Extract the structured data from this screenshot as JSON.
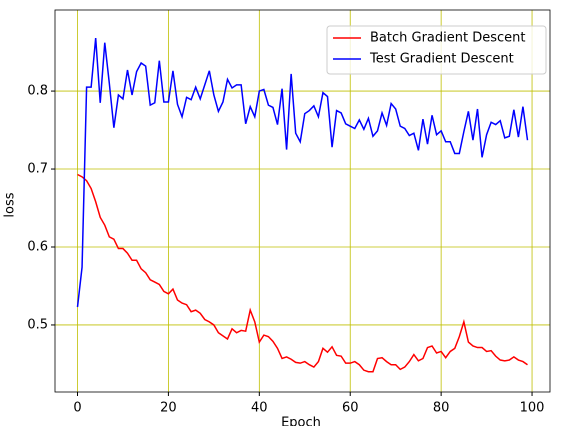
{
  "chart_data": {
    "type": "line",
    "xlabel": "Epoch",
    "ylabel": "loss",
    "x": [
      0,
      1,
      2,
      3,
      4,
      5,
      6,
      7,
      8,
      9,
      10,
      11,
      12,
      13,
      14,
      15,
      16,
      17,
      18,
      19,
      20,
      21,
      22,
      23,
      24,
      25,
      26,
      27,
      28,
      29,
      30,
      31,
      32,
      33,
      34,
      35,
      36,
      37,
      38,
      39,
      40,
      41,
      42,
      43,
      44,
      45,
      46,
      47,
      48,
      49,
      50,
      51,
      52,
      53,
      54,
      55,
      56,
      57,
      58,
      59,
      60,
      61,
      62,
      63,
      64,
      65,
      66,
      67,
      68,
      69,
      70,
      71,
      72,
      73,
      74,
      75,
      76,
      77,
      78,
      79,
      80,
      81,
      82,
      83,
      84,
      85,
      86,
      87,
      88,
      89,
      90,
      91,
      92,
      93,
      94,
      95,
      96,
      97,
      98,
      99
    ],
    "series": [
      {
        "name": "Batch Gradient Descent",
        "color": "#ff0000",
        "values": [
          0.693,
          0.69,
          0.685,
          0.675,
          0.658,
          0.638,
          0.628,
          0.613,
          0.61,
          0.598,
          0.598,
          0.592,
          0.583,
          0.583,
          0.572,
          0.567,
          0.558,
          0.555,
          0.552,
          0.543,
          0.54,
          0.546,
          0.532,
          0.528,
          0.526,
          0.517,
          0.519,
          0.515,
          0.507,
          0.504,
          0.5,
          0.49,
          0.486,
          0.482,
          0.495,
          0.49,
          0.493,
          0.492,
          0.519,
          0.504,
          0.478,
          0.487,
          0.485,
          0.479,
          0.47,
          0.457,
          0.459,
          0.456,
          0.452,
          0.451,
          0.453,
          0.449,
          0.446,
          0.453,
          0.47,
          0.465,
          0.472,
          0.461,
          0.46,
          0.451,
          0.451,
          0.453,
          0.449,
          0.442,
          0.44,
          0.44,
          0.457,
          0.458,
          0.453,
          0.449,
          0.449,
          0.443,
          0.446,
          0.453,
          0.462,
          0.454,
          0.457,
          0.471,
          0.473,
          0.464,
          0.466,
          0.458,
          0.466,
          0.47,
          0.485,
          0.504,
          0.478,
          0.473,
          0.471,
          0.471,
          0.466,
          0.467,
          0.46,
          0.455,
          0.454,
          0.455,
          0.459,
          0.455,
          0.453,
          0.449
        ]
      },
      {
        "name": "Test Gradient Descent",
        "color": "#0000ff",
        "values": [
          0.523,
          0.574,
          0.805,
          0.805,
          0.868,
          0.785,
          0.862,
          0.81,
          0.753,
          0.795,
          0.79,
          0.827,
          0.795,
          0.825,
          0.836,
          0.832,
          0.782,
          0.785,
          0.839,
          0.786,
          0.786,
          0.826,
          0.783,
          0.767,
          0.792,
          0.789,
          0.805,
          0.79,
          0.808,
          0.826,
          0.795,
          0.774,
          0.786,
          0.815,
          0.804,
          0.808,
          0.808,
          0.758,
          0.78,
          0.767,
          0.8,
          0.802,
          0.782,
          0.779,
          0.757,
          0.803,
          0.725,
          0.822,
          0.746,
          0.735,
          0.771,
          0.775,
          0.781,
          0.767,
          0.798,
          0.793,
          0.728,
          0.775,
          0.772,
          0.758,
          0.755,
          0.752,
          0.763,
          0.751,
          0.765,
          0.742,
          0.749,
          0.772,
          0.756,
          0.784,
          0.777,
          0.755,
          0.752,
          0.743,
          0.746,
          0.724,
          0.764,
          0.732,
          0.769,
          0.744,
          0.749,
          0.735,
          0.735,
          0.72,
          0.72,
          0.748,
          0.774,
          0.737,
          0.777,
          0.715,
          0.744,
          0.76,
          0.757,
          0.762,
          0.74,
          0.742,
          0.776,
          0.741,
          0.78,
          0.737
        ]
      }
    ],
    "xlim": [
      -4.95,
      103.95
    ],
    "xticks": [
      0,
      20,
      40,
      60,
      80,
      100
    ],
    "ylim": [
      0.414,
      0.904
    ],
    "yticks": [
      0.5,
      0.6,
      0.7,
      0.8
    ],
    "grid": true,
    "grid_color": "#bfbf00",
    "legend": "upper right"
  }
}
